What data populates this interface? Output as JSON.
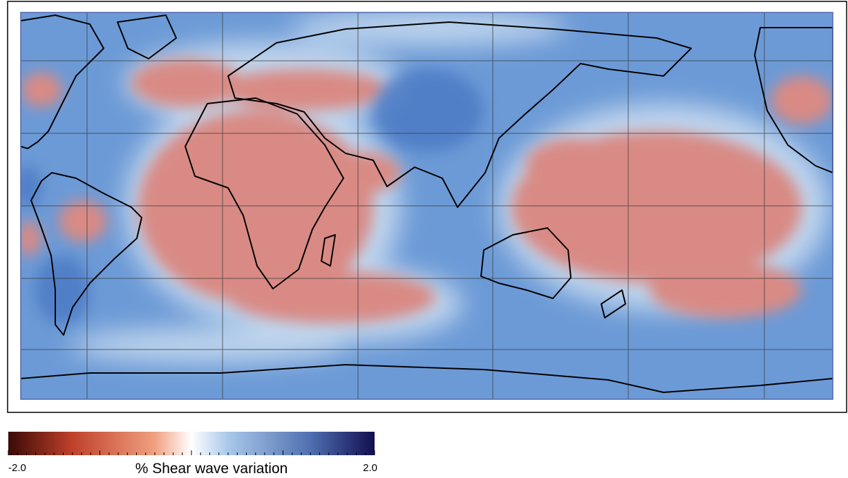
{
  "colorbar": {
    "title": "% Shear wave variation",
    "min": {
      "value": -2.0,
      "label": "-2.0"
    },
    "max": {
      "value": 2.0,
      "label": "2.0"
    }
  }
}
